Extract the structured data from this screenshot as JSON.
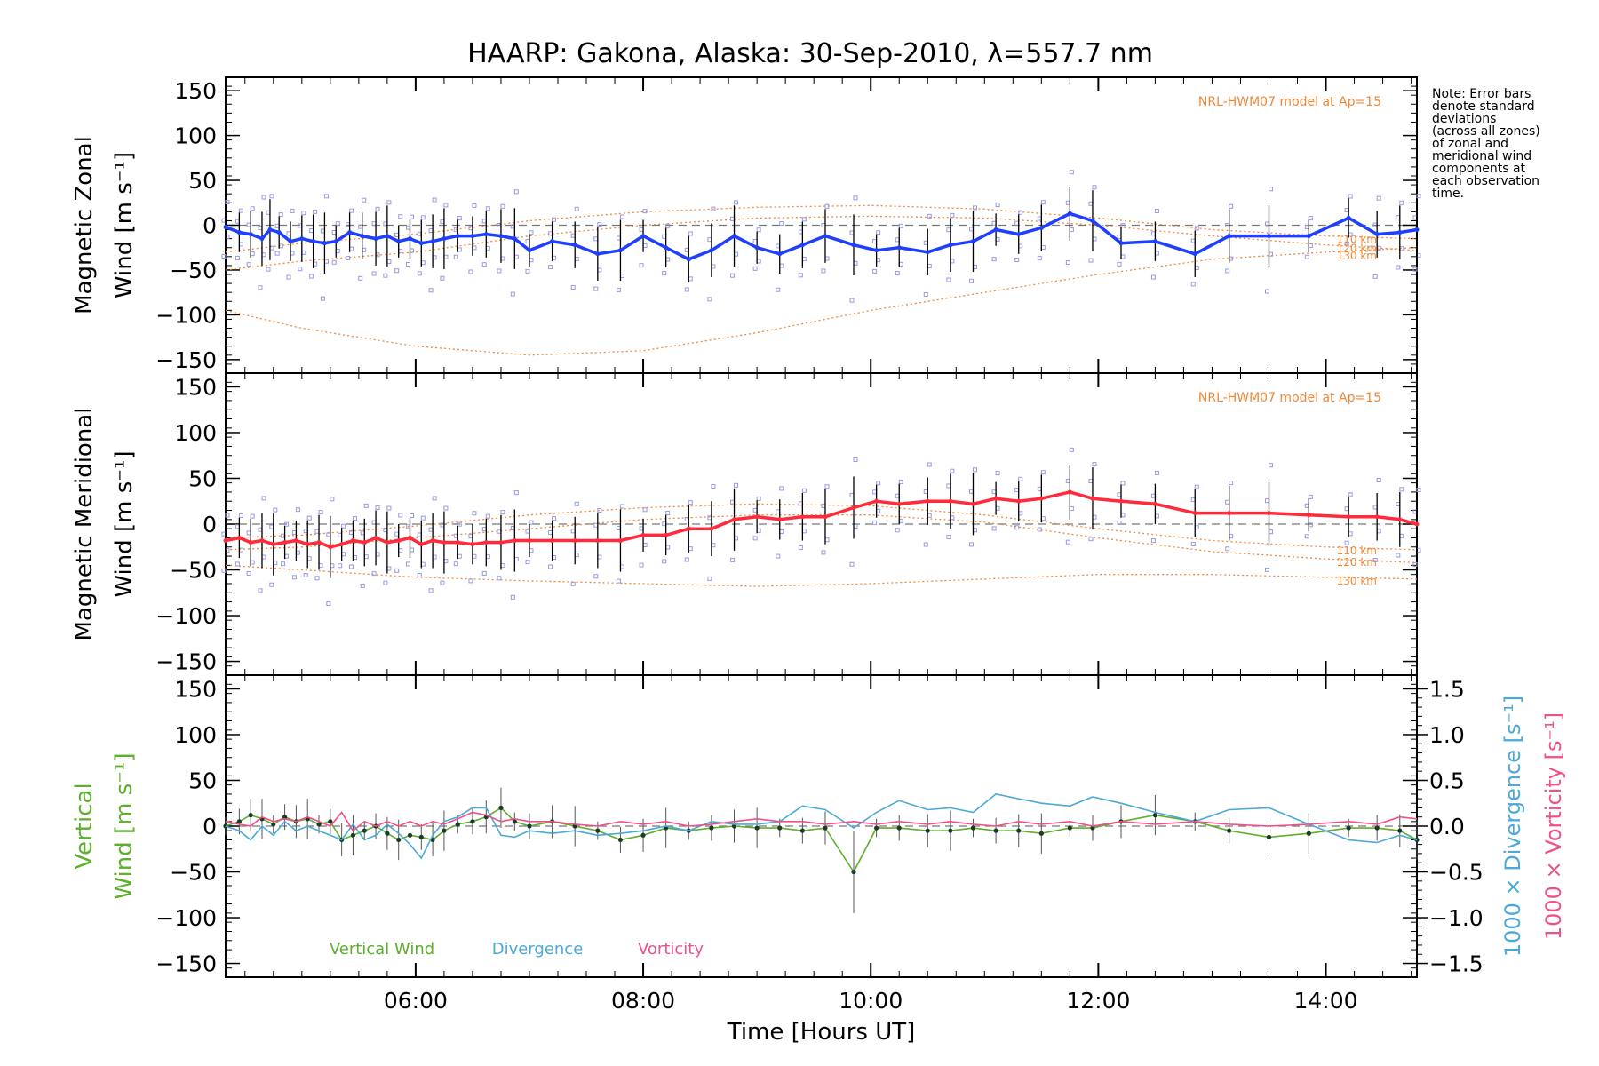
{
  "title": "HAARP: Gakona,  Alaska: 30-Sep-2010, λ=557.7 nm",
  "note": [
    "Note: Error bars",
    "denote standard",
    "deviations",
    "(across all zones)",
    "of zonal and",
    "meridional wind",
    "components at",
    "each observation",
    "time."
  ],
  "colors": {
    "zonal": "#1f3fff",
    "meridional": "#ff2a3a",
    "model": "#f0883a",
    "vertical": "#5fae2e",
    "divergence": "#4aa9d9",
    "vorticity": "#f0508a",
    "scatter": "#9a9ae0",
    "errbar": "#000000",
    "zero": "#777777"
  },
  "chart_data": [
    {
      "id": "zonal",
      "type": "line",
      "ylabel_lines": [
        "Magnetic Zonal",
        "Wind [m s⁻¹]"
      ],
      "ylim": [
        -165,
        165
      ],
      "yticks": [
        -150,
        -100,
        -50,
        0,
        50,
        100,
        150
      ],
      "xlim": [
        4.33,
        14.8
      ],
      "model_label": "NRL-HWM07 model at Ap=15",
      "model_levels": [
        "110 km",
        "120 km",
        "130 km"
      ],
      "x": [
        4.33,
        4.45,
        4.55,
        4.65,
        4.72,
        4.8,
        4.9,
        5.0,
        5.1,
        5.2,
        5.3,
        5.42,
        5.53,
        5.65,
        5.75,
        5.85,
        5.95,
        6.05,
        6.15,
        6.25,
        6.37,
        6.5,
        6.62,
        6.75,
        6.87,
        7.0,
        7.2,
        7.4,
        7.6,
        7.8,
        8.0,
        8.2,
        8.4,
        8.6,
        8.8,
        9.0,
        9.2,
        9.4,
        9.6,
        9.85,
        10.05,
        10.25,
        10.5,
        10.7,
        10.9,
        11.1,
        11.3,
        11.5,
        11.75,
        11.95,
        12.2,
        12.5,
        12.85,
        13.15,
        13.5,
        13.85,
        14.2,
        14.45,
        14.65,
        14.8
      ],
      "y": [
        -2,
        -8,
        -10,
        -15,
        -5,
        -8,
        -18,
        -15,
        -18,
        -20,
        -18,
        -8,
        -12,
        -15,
        -12,
        -18,
        -15,
        -20,
        -18,
        -15,
        -12,
        -12,
        -10,
        -12,
        -15,
        -28,
        -18,
        -22,
        -32,
        -28,
        -12,
        -25,
        -38,
        -28,
        -12,
        -25,
        -32,
        -22,
        -12,
        -22,
        -28,
        -25,
        -30,
        -22,
        -18,
        -5,
        -10,
        -3,
        13,
        5,
        -20,
        -18,
        -32,
        -12,
        -12,
        -12,
        8,
        -10,
        -8,
        -5
      ],
      "model_x": [
        4.33,
        5.0,
        6.0,
        7.0,
        8.0,
        9.0,
        10.0,
        11.0,
        12.0,
        13.0,
        14.0,
        14.8
      ],
      "model_y": [
        [
          -30,
          -20,
          -10,
          5,
          15,
          20,
          22,
          18,
          8,
          -5,
          -12,
          -15
        ],
        [
          -50,
          -40,
          -30,
          -12,
          0,
          8,
          10,
          8,
          0,
          -12,
          -22,
          -28
        ],
        [
          -95,
          -115,
          -135,
          -145,
          -140,
          -120,
          -95,
          -75,
          -55,
          -38,
          -30,
          -25
        ]
      ]
    },
    {
      "id": "meridional",
      "type": "line",
      "ylabel_lines": [
        "Magnetic Meridional",
        "Wind [m s⁻¹]"
      ],
      "ylim": [
        -165,
        165
      ],
      "yticks": [
        -150,
        -100,
        -50,
        0,
        50,
        100,
        150
      ],
      "xlim": [
        4.33,
        14.8
      ],
      "model_label": "NRL-HWM07 model at Ap=15",
      "model_levels": [
        "110 km",
        "120 km",
        "130 km"
      ],
      "x": [
        4.33,
        4.45,
        4.55,
        4.65,
        4.75,
        4.85,
        4.95,
        5.05,
        5.15,
        5.25,
        5.35,
        5.45,
        5.55,
        5.65,
        5.75,
        5.85,
        5.95,
        6.05,
        6.15,
        6.25,
        6.37,
        6.5,
        6.62,
        6.75,
        6.87,
        7.0,
        7.2,
        7.4,
        7.6,
        7.8,
        8.0,
        8.2,
        8.4,
        8.6,
        8.8,
        9.0,
        9.2,
        9.4,
        9.6,
        9.85,
        10.05,
        10.25,
        10.5,
        10.7,
        10.9,
        11.1,
        11.3,
        11.5,
        11.75,
        11.95,
        12.2,
        12.5,
        12.85,
        13.15,
        13.5,
        13.85,
        14.2,
        14.45,
        14.65,
        14.8
      ],
      "y": [
        -18,
        -15,
        -20,
        -18,
        -22,
        -20,
        -18,
        -22,
        -20,
        -25,
        -22,
        -18,
        -20,
        -15,
        -20,
        -18,
        -15,
        -22,
        -18,
        -20,
        -20,
        -22,
        -20,
        -20,
        -18,
        -18,
        -18,
        -18,
        -18,
        -18,
        -12,
        -12,
        -5,
        -5,
        5,
        8,
        5,
        8,
        8,
        18,
        25,
        22,
        25,
        25,
        22,
        28,
        25,
        28,
        35,
        28,
        25,
        22,
        12,
        12,
        12,
        10,
        8,
        8,
        5,
        0
      ],
      "model_x": [
        4.33,
        5.0,
        6.0,
        7.0,
        8.0,
        9.0,
        10.0,
        11.0,
        12.0,
        13.0,
        14.0,
        14.8
      ],
      "model_y": [
        [
          -15,
          -12,
          -2,
          10,
          18,
          22,
          20,
          10,
          -5,
          -18,
          -25,
          -28
        ],
        [
          -28,
          -25,
          -15,
          -5,
          5,
          10,
          10,
          2,
          -15,
          -30,
          -38,
          -42
        ],
        [
          -45,
          -50,
          -58,
          -62,
          -65,
          -68,
          -65,
          -60,
          -55,
          -55,
          -58,
          -60
        ]
      ]
    },
    {
      "id": "vertical",
      "type": "line",
      "ylabel_lines": [
        "Vertical",
        "Wind [m s⁻¹]"
      ],
      "ylim": [
        -165,
        165
      ],
      "yticks": [
        -150,
        -100,
        -50,
        0,
        50,
        100,
        150
      ],
      "y2label_lines": [
        "1000 × Divergence [s⁻¹]",
        "1000 × Vorticity [s⁻¹]"
      ],
      "y2lim": [
        -1.65,
        1.65
      ],
      "y2ticks": [
        -1.5,
        -1.0,
        -0.5,
        0.0,
        0.5,
        1.0,
        1.5
      ],
      "y2ticklabels": [
        "-1.5",
        "-1.0",
        "-0.5",
        "0.0",
        "0.5",
        "1.0",
        "1.5"
      ],
      "xlim": [
        4.33,
        14.8
      ],
      "xticks": [
        6,
        8,
        10,
        12,
        14
      ],
      "xticklabels": [
        "06:00",
        "08:00",
        "10:00",
        "12:00",
        "14:00"
      ],
      "xlabel": "Time [Hours UT]",
      "series": [
        {
          "name": "Vertical Wind",
          "x": [
            4.33,
            4.45,
            4.55,
            4.65,
            4.75,
            4.85,
            4.95,
            5.05,
            5.15,
            5.25,
            5.35,
            5.45,
            5.55,
            5.65,
            5.75,
            5.85,
            5.95,
            6.05,
            6.15,
            6.25,
            6.37,
            6.5,
            6.62,
            6.75,
            6.87,
            7.0,
            7.2,
            7.4,
            7.6,
            7.8,
            8.0,
            8.2,
            8.4,
            8.6,
            8.8,
            9.0,
            9.2,
            9.4,
            9.6,
            9.85,
            10.05,
            10.25,
            10.5,
            10.7,
            10.9,
            11.1,
            11.3,
            11.5,
            11.75,
            11.95,
            12.2,
            12.5,
            12.85,
            13.15,
            13.5,
            13.85,
            14.2,
            14.45,
            14.65,
            14.8
          ],
          "y": [
            0,
            5,
            12,
            8,
            2,
            10,
            5,
            8,
            2,
            5,
            -15,
            -10,
            -5,
            0,
            -8,
            -15,
            -10,
            -12,
            -15,
            -5,
            2,
            5,
            10,
            20,
            5,
            0,
            5,
            0,
            -5,
            -15,
            -10,
            -2,
            -5,
            -2,
            0,
            -2,
            -2,
            -5,
            -2,
            -50,
            -2,
            -2,
            -5,
            -5,
            -2,
            -5,
            -5,
            -8,
            -2,
            -2,
            5,
            12,
            5,
            -5,
            -12,
            -8,
            -2,
            -2,
            -5,
            -15
          ]
        },
        {
          "name": "Divergence",
          "x": [
            4.33,
            4.45,
            4.55,
            4.65,
            4.75,
            4.85,
            4.95,
            5.05,
            5.15,
            5.25,
            5.35,
            5.45,
            5.55,
            5.65,
            5.75,
            5.85,
            5.95,
            6.05,
            6.15,
            6.25,
            6.37,
            6.5,
            6.62,
            6.75,
            6.87,
            7.0,
            7.2,
            7.4,
            7.6,
            7.8,
            8.0,
            8.2,
            8.4,
            8.6,
            8.8,
            9.0,
            9.2,
            9.4,
            9.6,
            9.85,
            10.05,
            10.25,
            10.5,
            10.7,
            10.9,
            11.1,
            11.3,
            11.5,
            11.75,
            11.95,
            12.2,
            12.5,
            12.85,
            13.15,
            13.5,
            13.85,
            14.2,
            14.45,
            14.65,
            14.8
          ],
          "y": [
            0.0,
            -0.05,
            -0.15,
            0.0,
            -0.1,
            0.05,
            -0.05,
            0.0,
            -0.05,
            -0.1,
            -0.15,
            0.02,
            -0.15,
            -0.1,
            0.02,
            -0.08,
            -0.2,
            -0.35,
            -0.1,
            0.05,
            0.1,
            0.2,
            0.2,
            -0.1,
            -0.12,
            -0.05,
            -0.08,
            -0.05,
            -0.1,
            -0.08,
            -0.05,
            0.0,
            -0.05,
            0.05,
            0.02,
            0.02,
            0.05,
            0.22,
            0.18,
            -0.02,
            0.15,
            0.28,
            0.18,
            0.2,
            0.15,
            0.35,
            0.3,
            0.25,
            0.22,
            0.32,
            0.25,
            0.15,
            0.05,
            0.18,
            0.2,
            0.02,
            -0.15,
            -0.18,
            -0.1,
            -0.15
          ]
        },
        {
          "name": "Vorticity",
          "x": [
            4.33,
            4.45,
            4.55,
            4.65,
            4.75,
            4.85,
            4.95,
            5.05,
            5.15,
            5.25,
            5.35,
            5.45,
            5.55,
            5.65,
            5.75,
            5.85,
            5.95,
            6.05,
            6.15,
            6.25,
            6.37,
            6.5,
            6.62,
            6.75,
            6.87,
            7.0,
            7.2,
            7.4,
            7.6,
            7.8,
            8.0,
            8.2,
            8.4,
            8.6,
            8.8,
            9.0,
            9.2,
            9.4,
            9.6,
            9.85,
            10.05,
            10.25,
            10.5,
            10.7,
            10.9,
            11.1,
            11.3,
            11.5,
            11.75,
            11.95,
            12.2,
            12.5,
            12.85,
            13.15,
            13.5,
            13.85,
            14.2,
            14.45,
            14.65,
            14.8
          ],
          "y": [
            0.05,
            0.02,
            0.0,
            0.1,
            0.05,
            0.08,
            0.05,
            0.1,
            0.05,
            0.0,
            0.15,
            -0.05,
            0.05,
            0.0,
            0.05,
            0.0,
            0.05,
            0.0,
            0.05,
            0.02,
            0.08,
            0.15,
            0.12,
            0.05,
            0.08,
            0.05,
            0.05,
            0.02,
            0.0,
            0.05,
            0.02,
            0.05,
            0.0,
            0.02,
            0.05,
            0.08,
            0.05,
            0.05,
            0.02,
            0.05,
            0.02,
            0.05,
            0.02,
            0.05,
            0.02,
            0.0,
            0.05,
            0.02,
            0.05,
            0.0,
            0.05,
            0.02,
            0.05,
            0.02,
            0.0,
            0.02,
            0.05,
            0.02,
            0.1,
            0.08
          ]
        }
      ]
    }
  ]
}
